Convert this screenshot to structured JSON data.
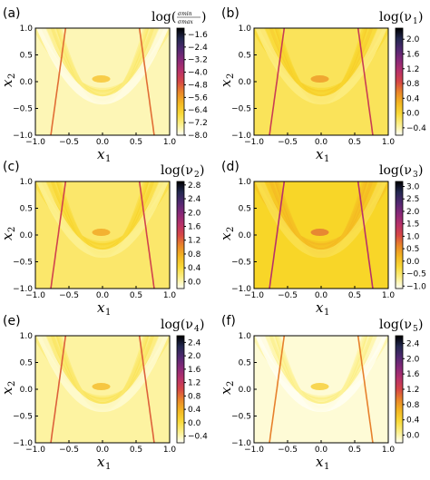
{
  "chart_data": [
    {
      "type": "heatmap",
      "panel_label": "(a)",
      "xlabel": "x",
      "xlabel_sub": "1",
      "ylabel": "x",
      "ylabel_sub": "2",
      "xlim": [
        -1.0,
        1.0
      ],
      "ylim": [
        -1.0,
        1.0
      ],
      "x_ticks": [
        "−1.0",
        "−0.5",
        "0.0",
        "0.5",
        "1.0"
      ],
      "y_ticks": [
        "1.0",
        "0.5",
        "0.0",
        "−0.5",
        "−1.0"
      ],
      "colorbar_title_prefix": "log",
      "colorbar_title_num": "σmin",
      "colorbar_title_den": "σmax",
      "colorbar_ticks": [
        "−1.6",
        "−2.4",
        "−3.2",
        "−4.0",
        "−4.8",
        "−5.6",
        "−6.4",
        "−7.2",
        "−8.0"
      ],
      "colorbar_range": [
        -8.0,
        -1.2
      ],
      "colormap": "inferno_r",
      "background_level": 0.06,
      "min_dark_line": true
    },
    {
      "type": "heatmap",
      "panel_label": "(b)",
      "xlabel": "x",
      "xlabel_sub": "1",
      "ylabel": "x",
      "ylabel_sub": "2",
      "xlim": [
        -1.0,
        1.0
      ],
      "ylim": [
        -1.0,
        1.0
      ],
      "x_ticks": [
        "−1.0",
        "−0.5",
        "0.0",
        "0.5",
        "1.0"
      ],
      "y_ticks": [
        "1.0",
        "0.5",
        "0.0",
        "−0.5",
        "−1.0"
      ],
      "colorbar_title_prefix": "log(ν",
      "colorbar_title_sub": "1",
      "colorbar_title_suffix": ")",
      "colorbar_ticks": [
        "2.0",
        "1.6",
        "1.2",
        "0.8",
        "0.4",
        "0.0",
        "−0.4"
      ],
      "colorbar_range": [
        -0.6,
        2.3
      ],
      "colormap": "inferno_r",
      "background_level": 0.16
    },
    {
      "type": "heatmap",
      "panel_label": "(c)",
      "xlabel": "x",
      "xlabel_sub": "1",
      "ylabel": "x",
      "ylabel_sub": "2",
      "xlim": [
        -1.0,
        1.0
      ],
      "ylim": [
        -1.0,
        1.0
      ],
      "x_ticks": [
        "−1.0",
        "−0.5",
        "0.0",
        "0.5",
        "1.0"
      ],
      "y_ticks": [
        "1.0",
        "0.5",
        "0.0",
        "−0.5",
        "−1.0"
      ],
      "colorbar_title_prefix": "log(ν",
      "colorbar_title_sub": "2",
      "colorbar_title_suffix": ")",
      "colorbar_ticks": [
        "2.8",
        "2.4",
        "2.0",
        "1.6",
        "1.2",
        "0.8",
        "0.4",
        "0.0"
      ],
      "colorbar_range": [
        -0.2,
        2.9
      ],
      "colormap": "inferno_r",
      "background_level": 0.14
    },
    {
      "type": "heatmap",
      "panel_label": "(d)",
      "xlabel": "x",
      "xlabel_sub": "1",
      "ylabel": "x",
      "ylabel_sub": "2",
      "xlim": [
        -1.0,
        1.0
      ],
      "ylim": [
        -1.0,
        1.0
      ],
      "x_ticks": [
        "−1.0",
        "−0.5",
        "0.0",
        "0.5",
        "1.0"
      ],
      "y_ticks": [
        "1.0",
        "0.5",
        "0.0",
        "−0.5",
        "−1.0"
      ],
      "colorbar_title_prefix": "log(ν",
      "colorbar_title_sub": "3",
      "colorbar_title_suffix": ")",
      "colorbar_ticks": [
        "3.0",
        "2.5",
        "2.0",
        "1.5",
        "1.0",
        "0.5",
        "0.0",
        "−0.5",
        "−1.0"
      ],
      "colorbar_range": [
        -1.1,
        3.2
      ],
      "colormap": "inferno_r",
      "background_level": 0.22
    },
    {
      "type": "heatmap",
      "panel_label": "(e)",
      "xlabel": "x",
      "xlabel_sub": "1",
      "ylabel": "x",
      "ylabel_sub": "2",
      "xlim": [
        -1.0,
        1.0
      ],
      "ylim": [
        -1.0,
        1.0
      ],
      "x_ticks": [
        "−1.0",
        "−0.5",
        "0.0",
        "0.5",
        "1.0"
      ],
      "y_ticks": [
        "1.0",
        "0.5",
        "0.0",
        "−0.5",
        "−1.0"
      ],
      "colorbar_title_prefix": "log(ν",
      "colorbar_title_sub": "4",
      "colorbar_title_suffix": ")",
      "colorbar_ticks": [
        "2.4",
        "2.0",
        "1.6",
        "1.2",
        "0.8",
        "0.4",
        "0.0",
        "−0.4"
      ],
      "colorbar_range": [
        -0.6,
        2.6
      ],
      "colormap": "inferno_r",
      "background_level": 0.08
    },
    {
      "type": "heatmap",
      "panel_label": "(f)",
      "xlabel": "x",
      "xlabel_sub": "1",
      "ylabel": "x",
      "ylabel_sub": "2",
      "xlim": [
        -1.0,
        1.0
      ],
      "ylim": [
        -1.0,
        1.0
      ],
      "x_ticks": [
        "−1.0",
        "−0.5",
        "0.0",
        "0.5",
        "1.0"
      ],
      "y_ticks": [
        "1.0",
        "0.5",
        "0.0",
        "−0.5",
        "−1.0"
      ],
      "colorbar_title_prefix": "log(ν",
      "colorbar_title_sub": "5",
      "colorbar_title_suffix": ")",
      "colorbar_ticks": [
        "2.4",
        "2.0",
        "1.6",
        "1.2",
        "0.8",
        "0.4",
        "0.0"
      ],
      "colorbar_range": [
        -0.2,
        2.6
      ],
      "colormap": "inferno_r",
      "background_level": 0.03
    }
  ]
}
